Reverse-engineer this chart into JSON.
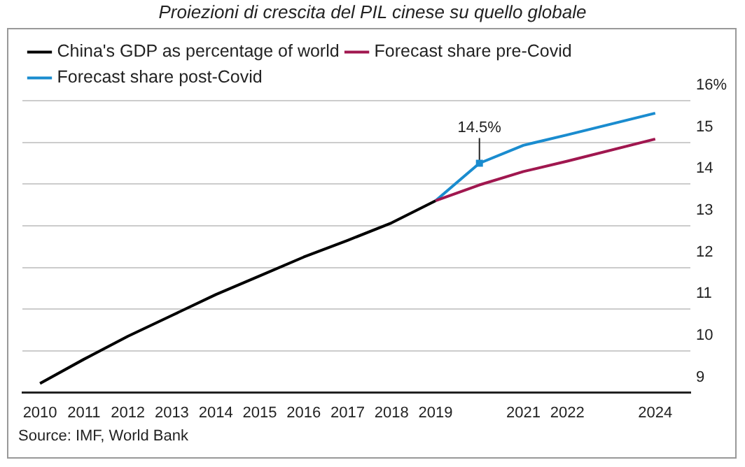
{
  "chart_data": {
    "type": "line",
    "title": "Proiezioni di crescita del PIL cinese su quello globale",
    "xlim": [
      2009.6,
      2024.8
    ],
    "xticks": [
      2010,
      2011,
      2012,
      2013,
      2014,
      2015,
      2016,
      2017,
      2018,
      2019,
      2021,
      2022,
      2024
    ],
    "ylim": [
      9,
      16
    ],
    "yticks": [
      {
        "value": 16,
        "label": "16%"
      },
      15,
      14,
      13,
      12,
      11,
      10,
      9
    ],
    "grid": "y",
    "legend": "top left",
    "marker": "none",
    "line_style": "solid",
    "series": [
      {
        "name": "China's GDP as percentage of world",
        "color": "#000000",
        "x": [
          2010,
          2011,
          2012,
          2013,
          2014,
          2015,
          2016,
          2017,
          2018,
          2019
        ],
        "values": [
          9.22,
          9.8,
          10.35,
          10.85,
          11.35,
          11.8,
          12.25,
          12.65,
          13.07,
          13.6
        ]
      },
      {
        "name": "Forecast share pre-Covid",
        "color": "#a0174f",
        "x": [
          2019,
          2020,
          2021,
          2022,
          2024
        ],
        "values": [
          13.6,
          13.98,
          14.3,
          14.55,
          15.08
        ]
      },
      {
        "name": "Forecast share post-Covid",
        "color": "#1a8ccf",
        "x": [
          2019,
          2020,
          2021,
          2022,
          2024
        ],
        "values": [
          13.6,
          14.5,
          14.93,
          15.18,
          15.7
        ]
      }
    ],
    "annotations": [
      {
        "text": "14.5%",
        "x": 2020,
        "y": 14.5
      },
      "Source: IMF, World Bank"
    ]
  }
}
